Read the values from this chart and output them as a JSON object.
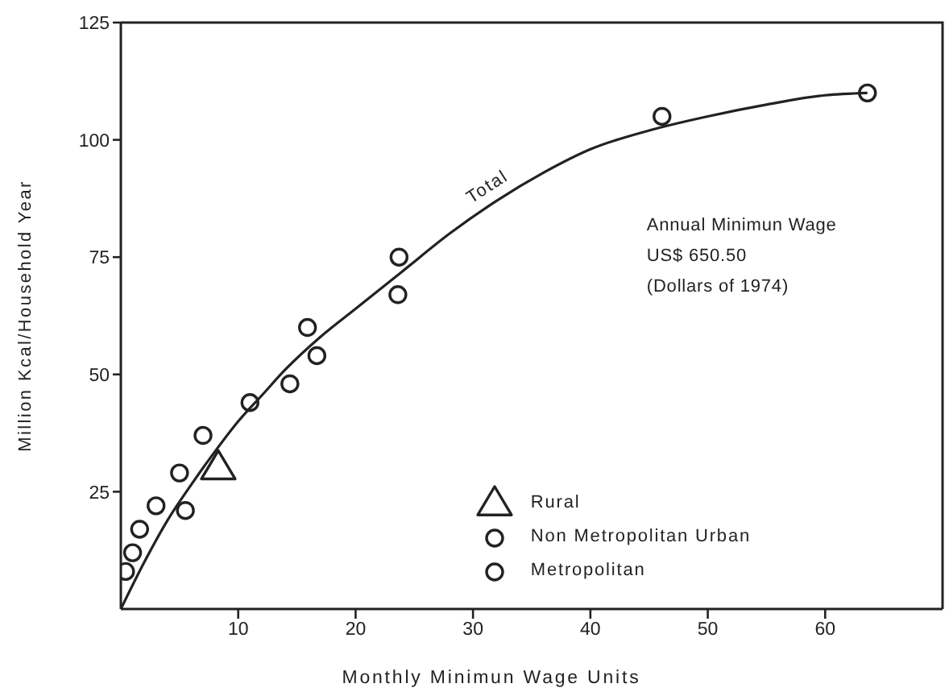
{
  "chart_data": {
    "type": "scatter",
    "xlabel": "Monthly Minimun Wage Units",
    "ylabel": "Million Kcal/Household Year",
    "annotations": [
      "Annual Minimun Wage\nUS$ 650.50\n(Dollars of 1974)"
    ],
    "xlim": [
      0,
      70
    ],
    "xticks": [
      10,
      20,
      30,
      40,
      50,
      60
    ],
    "ylim": [
      0,
      125
    ],
    "yticks": [
      25,
      50,
      75,
      100,
      125
    ],
    "legend": "bottom right",
    "series": [
      {
        "name": "Total",
        "type": "line",
        "color": "#222222",
        "marker": "none",
        "line_style": "solid",
        "x": [
          0,
          2,
          4,
          6,
          8,
          10,
          12,
          14,
          17,
          20,
          24,
          28,
          32,
          36,
          40,
          45,
          50,
          55,
          60,
          63.6
        ],
        "values": [
          0,
          10,
          19,
          26.5,
          33.5,
          40,
          45.5,
          51,
          58,
          64,
          72,
          80,
          87,
          93,
          98,
          102,
          105,
          107.5,
          109.5,
          110
        ]
      },
      {
        "name": "Rural",
        "color": "#222222",
        "marker": "triangle",
        "x": [
          8.3
        ],
        "values": [
          30
        ]
      },
      {
        "name": "Non Metropolitan Urban",
        "color": "#222222",
        "marker": "circle",
        "x": [
          0.4,
          1,
          1.6,
          3,
          5,
          5.5,
          7,
          14.4,
          15.9,
          16.7,
          23.6,
          23.7,
          46.1,
          63.6
        ],
        "values": [
          8,
          12,
          17,
          22,
          29,
          21,
          37,
          48,
          60,
          54,
          67,
          75,
          105,
          110
        ]
      },
      {
        "name": "Metropolitan",
        "color": "#222222",
        "marker": "circle",
        "x": [
          11
        ],
        "values": [
          44
        ]
      }
    ]
  }
}
